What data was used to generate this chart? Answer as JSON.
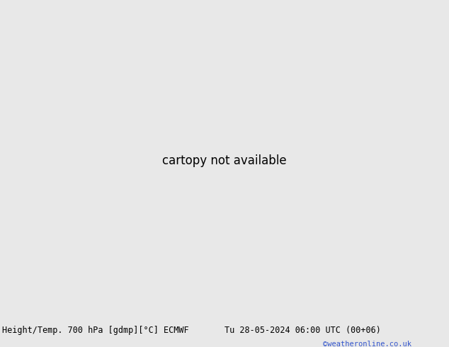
{
  "title_left": "Height/Temp. 700 hPa [gdmp][°C] ECMWF",
  "title_right": "Tu 28-05-2024 06:00 UTC (00+06)",
  "credit": "©weatheronline.co.uk",
  "bg_color": "#e8e8e8",
  "land_color": "#b4e8a0",
  "border_color": "#787878",
  "geo_color": "#111111",
  "pink_color": "#e030c0",
  "red_color": "#dd2222",
  "orange_color": "#e07800",
  "title_fontsize": 8.5,
  "credit_fontsize": 7.5,
  "credit_color": "#3355cc",
  "lw_geo": 1.9,
  "lw_temp": 1.5,
  "map_extent": [
    -100,
    -10,
    -60,
    20
  ],
  "figsize": [
    6.34,
    4.9
  ],
  "dpi": 100
}
